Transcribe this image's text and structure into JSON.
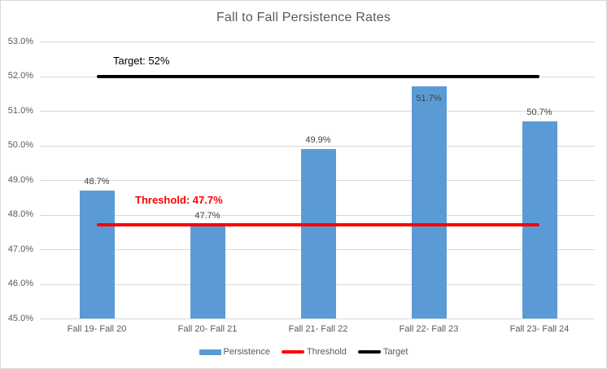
{
  "chart": {
    "title": "Fall to Fall Persistence Rates"
  },
  "chart_data": {
    "type": "bar",
    "title": "Fall to Fall Persistence Rates",
    "categories": [
      "Fall 19- Fall 20",
      "Fall 20- Fall 21",
      "Fall 21- Fall 22",
      "Fall 22- Fall 23",
      "Fall 23- Fall 24"
    ],
    "series": [
      {
        "name": "Persistence",
        "kind": "bar",
        "color": "#5B9BD5",
        "values": [
          48.7,
          47.7,
          49.9,
          51.7,
          50.7
        ],
        "data_labels": [
          "48.7%",
          "47.7%",
          "49.9%",
          "51.7%",
          "50.7%"
        ]
      },
      {
        "name": "Threshold",
        "kind": "line",
        "color": "#FF0000",
        "value": 47.7
      },
      {
        "name": "Target",
        "kind": "line",
        "color": "#000000",
        "value": 52.0
      }
    ],
    "ylim": [
      45.0,
      53.0
    ],
    "ytick_step": 1.0,
    "yticks": [
      {
        "value": 53.0,
        "label": "53.0%"
      },
      {
        "value": 52.0,
        "label": "52.0%"
      },
      {
        "value": 51.0,
        "label": "51.0%"
      },
      {
        "value": 50.0,
        "label": "50.0%"
      },
      {
        "value": 49.0,
        "label": "49.0%"
      },
      {
        "value": 48.0,
        "label": "48.0%"
      },
      {
        "value": 47.0,
        "label": "47.0%"
      },
      {
        "value": 46.0,
        "label": "46.0%"
      },
      {
        "value": 45.0,
        "label": "45.0%"
      }
    ],
    "grid": true,
    "legend_position": "bottom",
    "annotations": [
      {
        "text": "Target: 52%",
        "color": "#000000",
        "bold": false
      },
      {
        "text": "Threshold: 47.7%",
        "color": "#FF0000",
        "bold": true
      }
    ]
  },
  "colors": {
    "bar": "#5B9BD5",
    "threshold_line": "#FF0000",
    "target_line": "#000000",
    "gridline": "#D9D9D9",
    "axis_text": "#595959",
    "data_label_text": "#404040",
    "title_text": "#595959",
    "border": "#D9D9D9",
    "background": "#FFFFFF"
  }
}
